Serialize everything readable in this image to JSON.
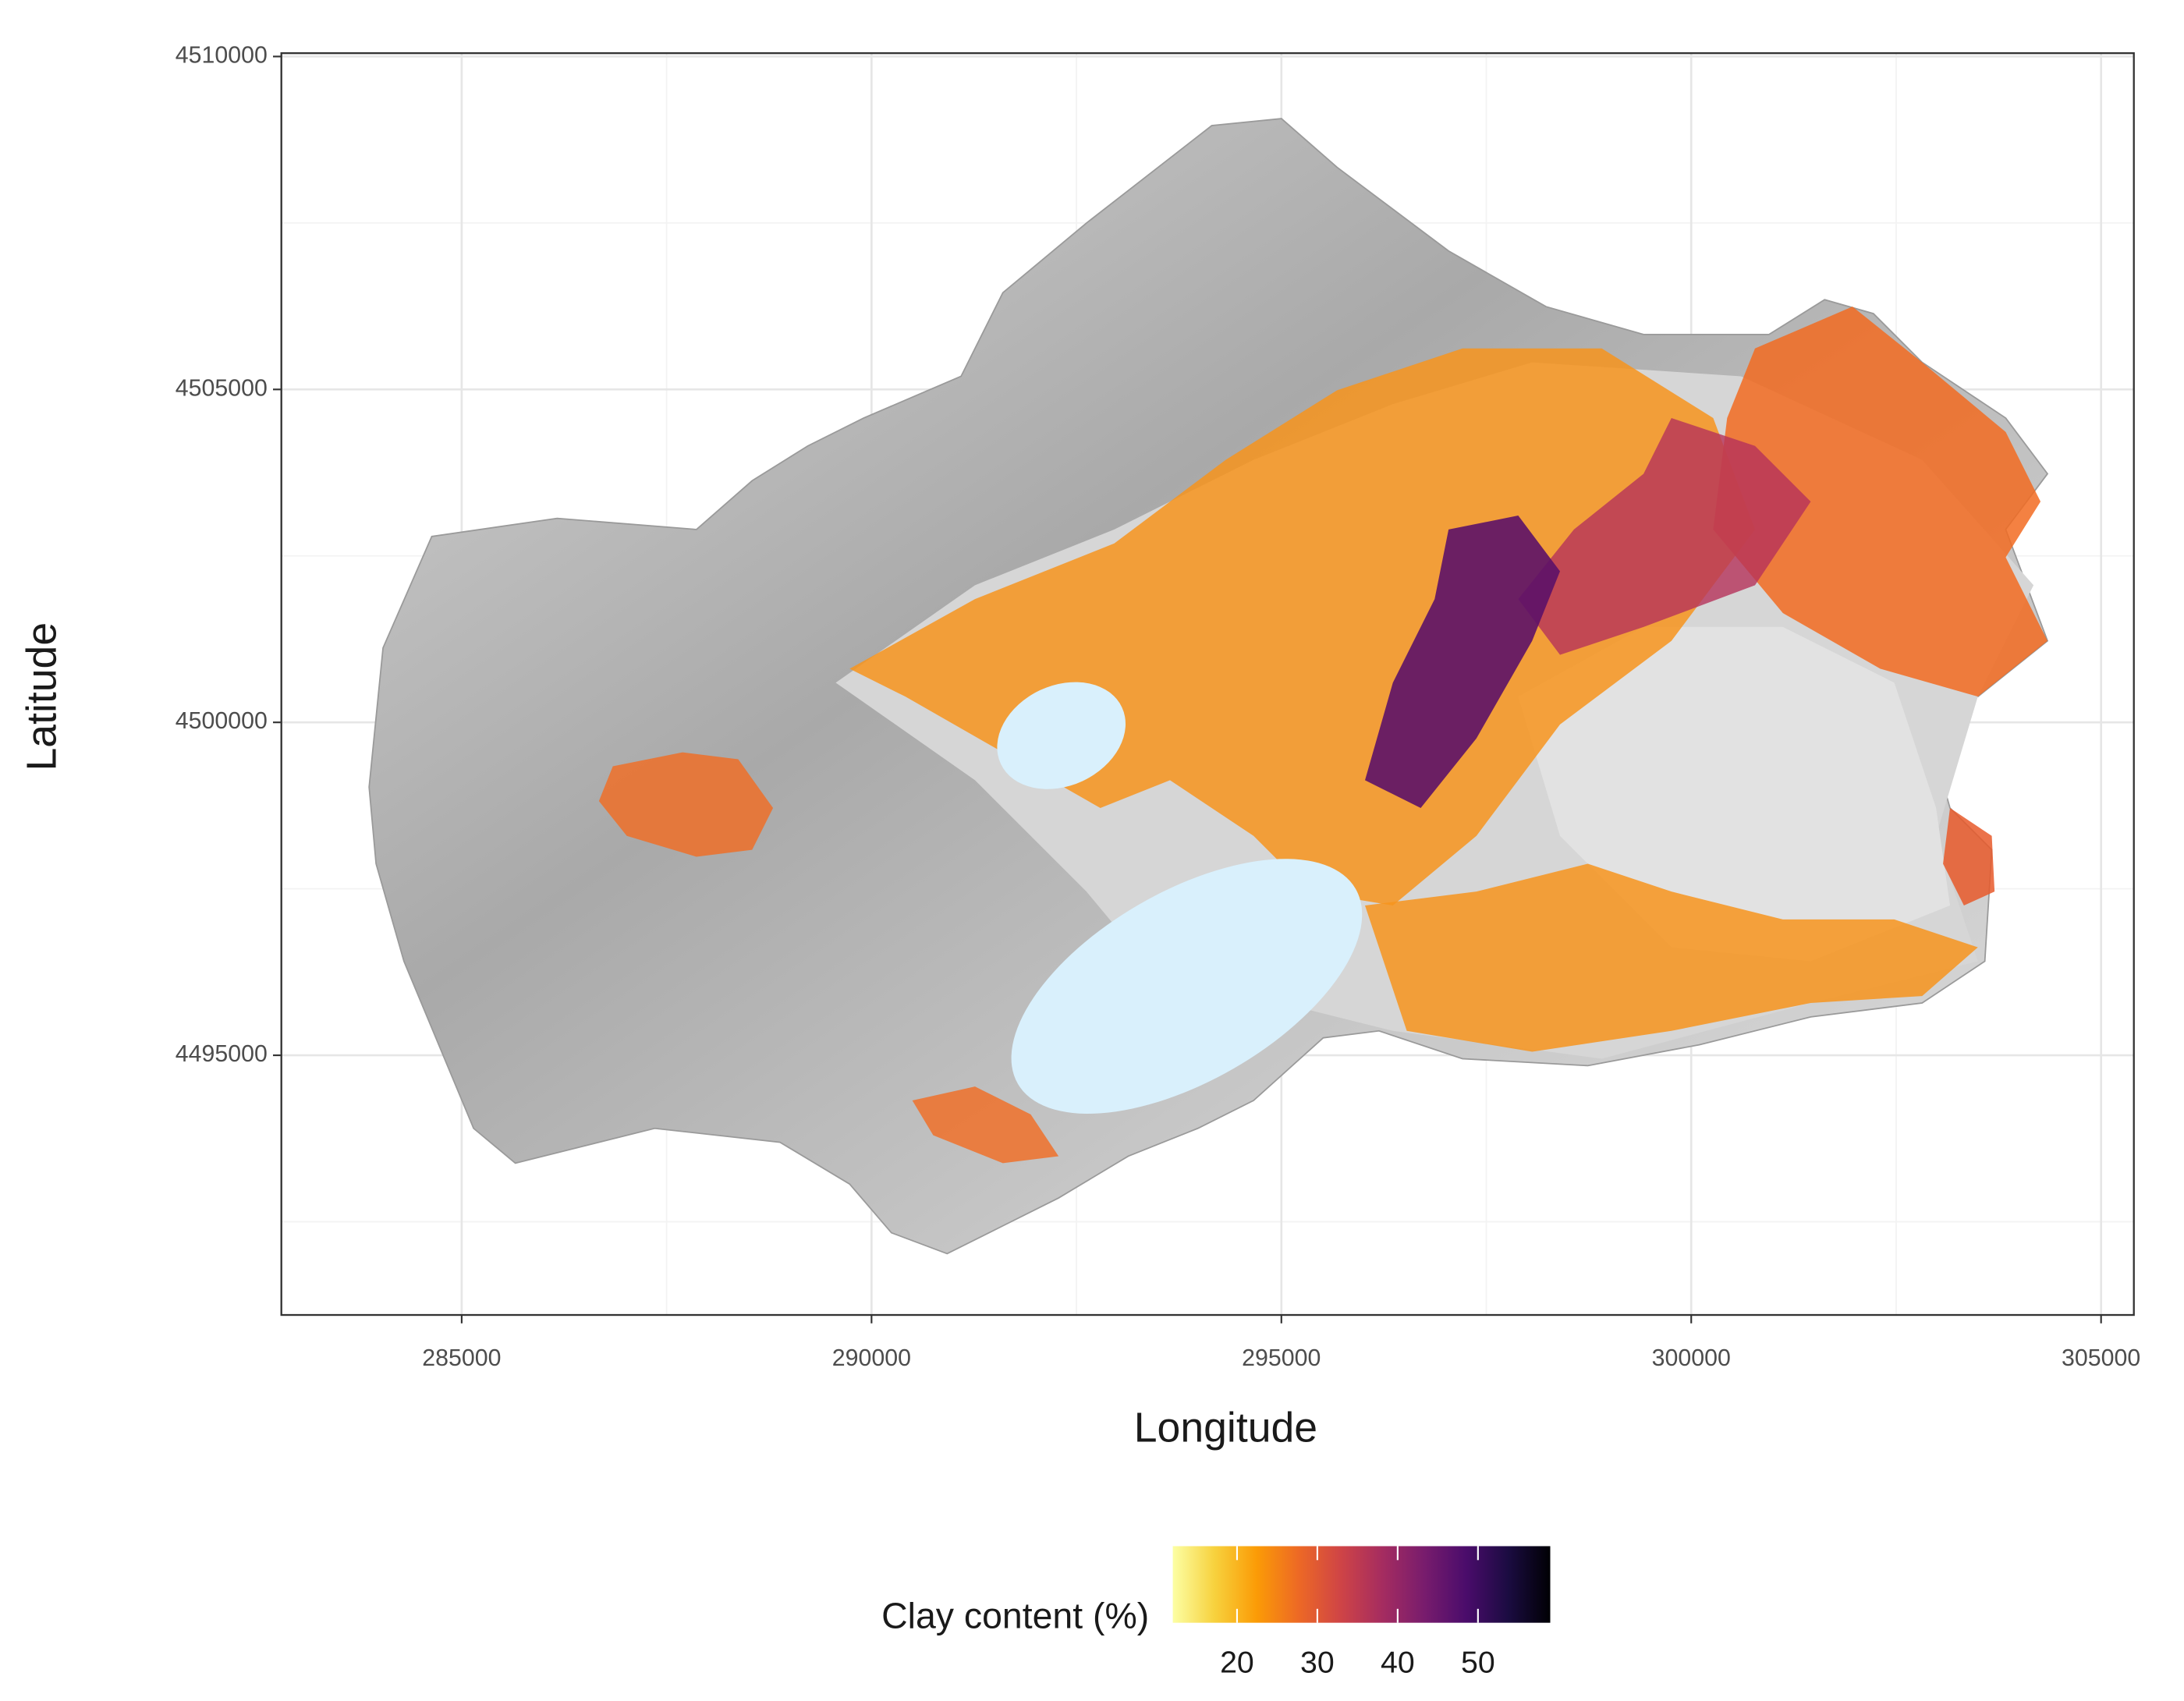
{
  "chart_data": {
    "type": "map",
    "xlabel": "Longitude",
    "ylabel": "Latitude",
    "xlim": [
      282800,
      305400
    ],
    "ylim": [
      4491100,
      4510050
    ],
    "xticks": [
      285000,
      290000,
      295000,
      300000,
      305000
    ],
    "yticks": [
      4495000,
      4500000,
      4505000,
      4510000
    ],
    "minor_xticks": [
      287500,
      292500,
      297500,
      302500
    ],
    "minor_yticks": [
      4492500,
      4497500,
      4502500,
      4507500
    ],
    "grid": true,
    "legend": {
      "title": "Clay content (%)",
      "ticks": [
        20,
        30,
        40,
        50
      ],
      "lim": [
        12,
        59
      ],
      "colors": [
        "#fcffa4",
        "#f7d13d",
        "#fb9b06",
        "#ed6925",
        "#cf4446",
        "#a52c60",
        "#781c6d",
        "#4a0c6b",
        "#1b0c41",
        "#000004"
      ]
    }
  }
}
